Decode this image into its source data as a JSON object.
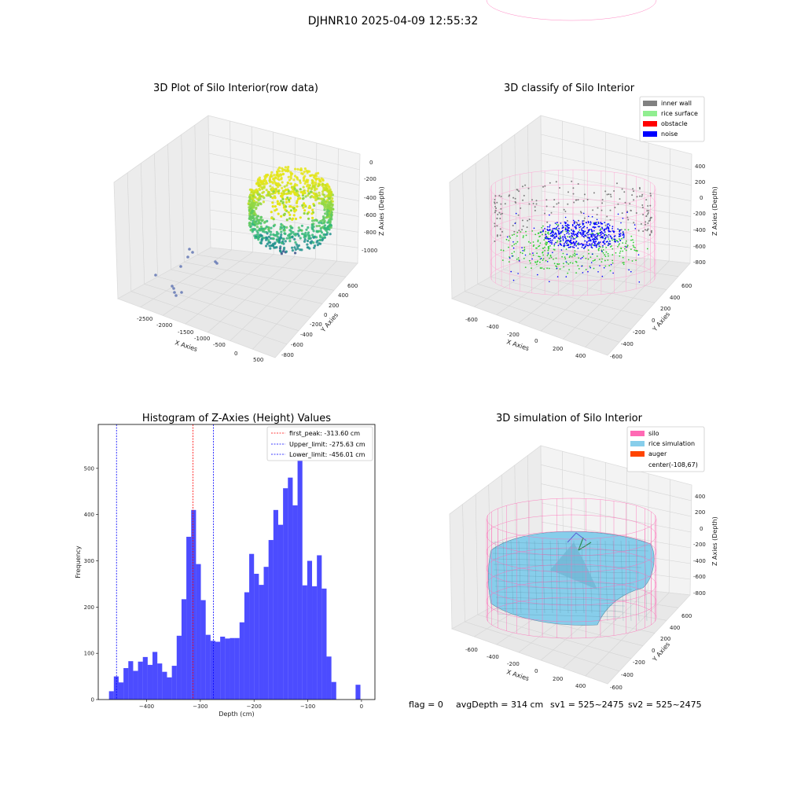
{
  "suptitle": "DJHNR10 2025-04-09 12:55:32",
  "footer": {
    "flag": "flag = 0",
    "avg_depth": "avgDepth = 314 cm",
    "sv1": "sv1 = 525~2475",
    "sv2": "sv2 = 525~2475"
  },
  "panel_tl": {
    "title": "3D Plot of Silo Interior(row data)",
    "xlabel": "X Axies",
    "ylabel": "Y Axies",
    "zlabel": "Z Axies (Depth)",
    "xticks": [
      "-2500",
      "-2000",
      "-1500",
      "-1000",
      "-500",
      "0",
      "500"
    ],
    "yticks": [
      "600",
      "400",
      "200",
      "0",
      "-200",
      "-400",
      "-600",
      "-800"
    ],
    "zticks": [
      "0",
      "-200",
      "-400",
      "-600",
      "-800",
      "-1000"
    ]
  },
  "panel_tr": {
    "title": "3D classify of Silo Interior",
    "xlabel": "X Axies",
    "ylabel": "Y Axies",
    "zlabel": "Z Axies (Depth)",
    "xticks": [
      "-600",
      "-400",
      "-200",
      "0",
      "200",
      "400"
    ],
    "yticks": [
      "600",
      "400",
      "200",
      "0",
      "-200",
      "-400",
      "-600"
    ],
    "zticks": [
      "400",
      "200",
      "0",
      "-200",
      "-400",
      "-600",
      "-800"
    ],
    "legend": [
      {
        "label": "inner wall",
        "color": "#808080"
      },
      {
        "label": "rice surface",
        "color": "#90ee90"
      },
      {
        "label": "obstacle",
        "color": "#ff0000"
      },
      {
        "label": "noise",
        "color": "#0000ff"
      }
    ]
  },
  "panel_br": {
    "title": "3D simulation of Silo Interior",
    "xlabel": "X Axies",
    "ylabel": "Y Axies",
    "zlabel": "Z Axies (Depth)",
    "xticks": [
      "-600",
      "-400",
      "-200",
      "0",
      "200",
      "400"
    ],
    "yticks": [
      "600",
      "400",
      "200",
      "0",
      "-200",
      "-400",
      "-600"
    ],
    "zticks": [
      "400",
      "200",
      "0",
      "-200",
      "-400",
      "-600",
      "-800"
    ],
    "legend": [
      {
        "label": "silo",
        "color": "#ff69b4"
      },
      {
        "label": "rice simulation",
        "color": "#87ceeb"
      },
      {
        "label": "auger",
        "color": "#ff4500"
      },
      {
        "label": "center(-108,67)",
        "color": ""
      }
    ]
  },
  "chart_data": {
    "type": "bar",
    "title": "Histogram of Z-Axies (Height) Values",
    "xlabel": "Depth (cm)",
    "ylabel": "Frequency",
    "xlim": [
      -490,
      25
    ],
    "ylim": [
      0,
      595
    ],
    "xticks": [
      -400,
      -300,
      -200,
      -100,
      0
    ],
    "yticks": [
      0,
      100,
      200,
      300,
      400,
      500
    ],
    "bar_color": "#0000ff",
    "bin_edges": [
      -470,
      -461,
      -452,
      -443,
      -434,
      -425,
      -416,
      -407,
      -398,
      -389,
      -380,
      -371,
      -362,
      -353,
      -344,
      -335,
      -326,
      -317,
      -308,
      -299,
      -290,
      -281,
      -272,
      -263,
      -254,
      -245,
      -236,
      -227,
      -218,
      -209,
      -200,
      -191,
      -182,
      -173,
      -164,
      -155,
      -146,
      -137,
      -128,
      -119,
      -110,
      -101,
      -92,
      -83,
      -74,
      -65,
      -56,
      -47,
      -38,
      -29,
      -20,
      -11,
      -2
    ],
    "values": [
      18,
      50,
      37,
      68,
      83,
      62,
      82,
      92,
      75,
      103,
      78,
      60,
      48,
      73,
      138,
      217,
      352,
      410,
      293,
      215,
      140,
      127,
      125,
      136,
      132,
      133,
      133,
      167,
      232,
      315,
      272,
      248,
      287,
      345,
      410,
      378,
      457,
      480,
      420,
      557,
      247,
      300,
      245,
      312,
      240,
      93,
      38,
      0,
      0,
      0,
      0,
      32
    ],
    "lines": [
      {
        "label": "first_peak: -313.60 cm",
        "x": -313.6,
        "color": "#ff0000"
      },
      {
        "label": "Upper_limit: -275.63 cm",
        "x": -275.63,
        "color": "#0000ff"
      },
      {
        "label": "Lower_limit: -456.01 cm",
        "x": -456.01,
        "color": "#0000ff"
      }
    ]
  }
}
